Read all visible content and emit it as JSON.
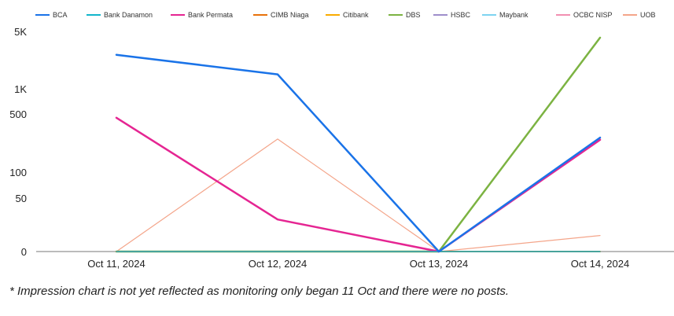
{
  "chart_data": {
    "type": "line",
    "x": [
      "Oct 11, 2024",
      "Oct 12, 2024",
      "Oct 13, 2024",
      "Oct 14, 2024"
    ],
    "y_scale": "symlog",
    "y_ticks": [
      {
        "value": 0,
        "label": "0"
      },
      {
        "value": 50,
        "label": "50"
      },
      {
        "value": 100,
        "label": "100"
      },
      {
        "value": 500,
        "label": "500"
      },
      {
        "value": 1000,
        "label": "1K"
      },
      {
        "value": 5000,
        "label": "5K"
      }
    ],
    "legend_position": "top",
    "grid": "baseline only",
    "series": [
      {
        "name": "BCA",
        "color": "#1a73e8",
        "width": 2.5,
        "values": [
          2600,
          1500,
          0,
          260
        ]
      },
      {
        "name": "Bank Danamon",
        "color": "#12b5cb",
        "width": 1.5,
        "values": [
          0,
          0,
          0,
          0
        ]
      },
      {
        "name": "Bank Permata",
        "color": "#e52592",
        "width": 2.5,
        "values": [
          450,
          30,
          0,
          245
        ]
      },
      {
        "name": "CIMB Niaga",
        "color": "#e8710a",
        "width": 2,
        "values": [
          0,
          0,
          0,
          0
        ]
      },
      {
        "name": "Citibank",
        "color": "#f9ab00",
        "width": 1.5,
        "values": [
          0,
          0,
          0,
          0
        ]
      },
      {
        "name": "DBS",
        "color": "#7cb342",
        "width": 2.5,
        "values": [
          0,
          0,
          0,
          4200
        ]
      },
      {
        "name": "HSBC",
        "color": "#9e8ecb",
        "width": 1.5,
        "values": [
          0,
          0,
          0,
          0
        ]
      },
      {
        "name": "Maybank",
        "color": "#7ed3f0",
        "width": 1.5,
        "values": [
          0,
          0,
          0,
          0
        ]
      },
      {
        "name": "OCBC NISP",
        "color": "#f28fb1",
        "width": 1.5,
        "values": [
          0,
          0,
          0,
          0
        ]
      },
      {
        "name": "UOB",
        "color": "#f4a58a",
        "width": 1.2,
        "values": [
          0,
          250,
          0,
          15
        ]
      }
    ]
  },
  "footnote": "* Impression chart is not yet reflected as monitoring only began 11 Oct and there were no posts."
}
